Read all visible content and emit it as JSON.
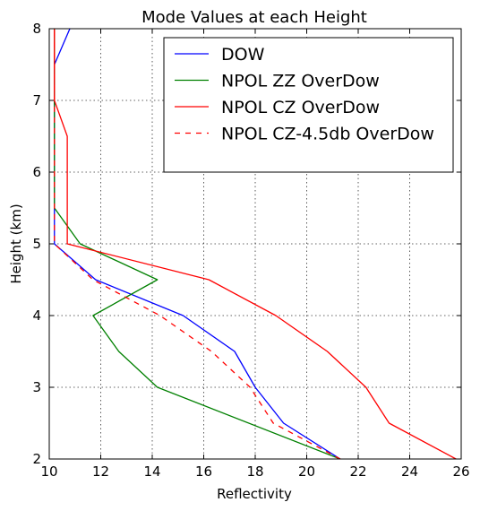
{
  "chart_data": {
    "type": "line",
    "title": "Mode Values at each Height",
    "xlabel": "Reflectivity",
    "ylabel": "Height (km)",
    "xlim": [
      10,
      26
    ],
    "ylim": [
      2,
      8
    ],
    "xticks": [
      10,
      12,
      14,
      16,
      18,
      20,
      22,
      24,
      26
    ],
    "yticks": [
      2,
      3,
      4,
      5,
      6,
      7,
      8
    ],
    "grid": true,
    "legend_position": "top-right",
    "series": [
      {
        "name": "DOW",
        "color": "#0000ff",
        "dash": "solid",
        "points": [
          [
            21.3,
            2.0
          ],
          [
            19.1,
            2.5
          ],
          [
            18.0,
            3.0
          ],
          [
            17.2,
            3.5
          ],
          [
            15.2,
            4.0
          ],
          [
            11.8,
            4.5
          ],
          [
            10.2,
            5.0
          ],
          [
            10.2,
            5.5
          ],
          [
            10.2,
            6.0
          ],
          [
            10.2,
            6.5
          ],
          [
            10.2,
            7.0
          ],
          [
            10.2,
            7.5
          ],
          [
            10.8,
            8.0
          ]
        ]
      },
      {
        "name": "NPOL ZZ OverDow",
        "color": "#008000",
        "dash": "solid",
        "points": [
          [
            21.3,
            2.0
          ],
          [
            14.2,
            3.0
          ],
          [
            12.7,
            3.5
          ],
          [
            11.7,
            4.0
          ],
          [
            14.2,
            4.5
          ],
          [
            11.2,
            5.0
          ],
          [
            10.2,
            5.5
          ],
          [
            10.2,
            6.0
          ],
          [
            10.2,
            6.5
          ],
          [
            10.2,
            7.0
          ],
          [
            10.2,
            7.5
          ],
          [
            10.2,
            8.0
          ]
        ]
      },
      {
        "name": "NPOL CZ OverDow",
        "color": "#ff0000",
        "dash": "solid",
        "points": [
          [
            25.8,
            2.0
          ],
          [
            23.2,
            2.5
          ],
          [
            22.3,
            3.0
          ],
          [
            20.8,
            3.5
          ],
          [
            18.8,
            4.0
          ],
          [
            16.2,
            4.5
          ],
          [
            10.7,
            5.0
          ],
          [
            10.7,
            5.5
          ],
          [
            10.7,
            6.0
          ],
          [
            10.7,
            6.5
          ],
          [
            10.2,
            7.0
          ],
          [
            10.2,
            7.5
          ],
          [
            10.2,
            8.0
          ]
        ]
      },
      {
        "name": "NPOL CZ-4.5db OverDow",
        "color": "#ff0000",
        "dash": "dashed",
        "points": [
          [
            21.3,
            2.0
          ],
          [
            18.7,
            2.5
          ],
          [
            17.8,
            3.0
          ],
          [
            16.3,
            3.5
          ],
          [
            14.3,
            4.0
          ],
          [
            11.7,
            4.5
          ],
          [
            10.2,
            5.0
          ],
          [
            10.2,
            5.5
          ],
          [
            10.2,
            6.0
          ],
          [
            10.2,
            6.5
          ],
          [
            10.2,
            7.0
          ],
          [
            10.2,
            7.5
          ],
          [
            10.2,
            8.0
          ]
        ]
      }
    ]
  }
}
